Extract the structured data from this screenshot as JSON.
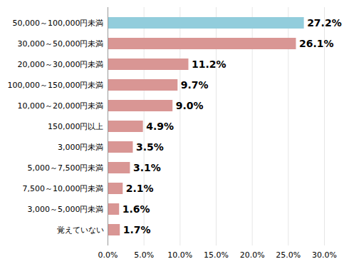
{
  "chart_data": {
    "type": "bar",
    "orientation": "horizontal",
    "categories": [
      "50,000～100,000円未満",
      "30,000～50,000円未満",
      "20,000～30,000円未満",
      "100,000～150,000円未満",
      "10,000～20,000円未満",
      "150,000円以上",
      "3,000円未満",
      "5,000～7,500円未満",
      "7,500～10,000円未満",
      "3,000～5,000円未満",
      "覚えていない"
    ],
    "values": [
      27.2,
      26.1,
      11.2,
      9.7,
      9.0,
      4.9,
      3.5,
      3.1,
      2.1,
      1.6,
      1.7
    ],
    "value_labels": [
      "27.2%",
      "26.1%",
      "11.2%",
      "9.7%",
      "9.0%",
      "4.9%",
      "3.5%",
      "3.1%",
      "2.1%",
      "1.6%",
      "1.7%"
    ],
    "colors": [
      "#92cddc",
      "#d99694",
      "#d99694",
      "#d99694",
      "#d99694",
      "#d99694",
      "#d99694",
      "#d99694",
      "#d99694",
      "#d99694",
      "#d99694"
    ],
    "xlim": [
      0,
      30
    ],
    "xticks": [
      {
        "value": 0,
        "label": "0.0%"
      },
      {
        "value": 5,
        "label": "5.0%"
      },
      {
        "value": 10,
        "label": "10.0%"
      },
      {
        "value": 15,
        "label": "15.0%"
      },
      {
        "value": 20,
        "label": "20.0%"
      },
      {
        "value": 25,
        "label": "25.0%"
      },
      {
        "value": 30,
        "label": "30.0%"
      }
    ],
    "grid": true,
    "data_labels": true
  }
}
